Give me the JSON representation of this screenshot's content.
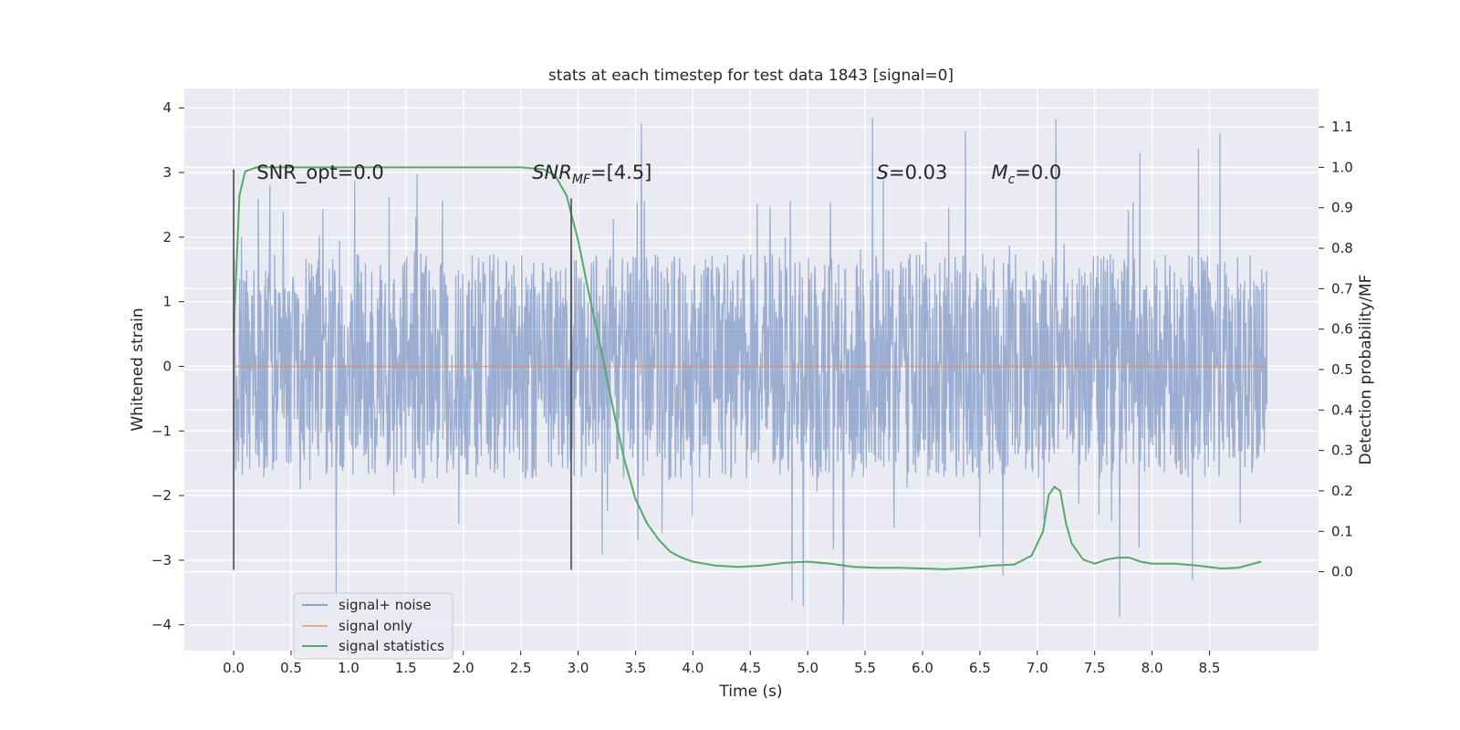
{
  "chart_data": {
    "type": "line",
    "title": "stats at each timestep for test data 1843 [signal=0]",
    "xlabel": "Time (s)",
    "ylabel": "Whitened strain",
    "ylabel_right": "Detection probability/MF",
    "xlim": [
      -0.43,
      9.45
    ],
    "ylim": [
      -4.4,
      4.3
    ],
    "ylim_right": [
      -0.195,
      1.195
    ],
    "x_ticks": [
      0.0,
      0.5,
      1.0,
      1.5,
      2.0,
      2.5,
      3.0,
      3.5,
      4.0,
      4.5,
      5.0,
      5.5,
      6.0,
      6.5,
      7.0,
      7.5,
      8.0,
      8.5
    ],
    "y_ticks": [
      -4,
      -3,
      -2,
      -1,
      0,
      1,
      2,
      3,
      4
    ],
    "y_ticks_right": [
      0.0,
      0.1,
      0.2,
      0.3,
      0.4,
      0.5,
      0.6,
      0.7,
      0.8,
      0.9,
      1.0,
      1.1
    ],
    "grid": true,
    "legend_position": "lower-left",
    "series": [
      {
        "name": "signal+ noise",
        "color": "#4c72b0",
        "axis": "left",
        "kind": "noise",
        "x_range": [
          0.0,
          9.0
        ],
        "band": 1.2,
        "spike_max": 3.9,
        "spike_min": -4.0
      },
      {
        "name": "signal only",
        "color": "#dd8452",
        "axis": "left",
        "x": [
          0.0,
          9.0
        ],
        "y": [
          0.0,
          0.0
        ]
      },
      {
        "name": "signal statistics",
        "color": "#55a868",
        "axis": "right",
        "x": [
          0.0,
          0.05,
          0.1,
          0.15,
          0.2,
          0.3,
          0.5,
          1.0,
          2.0,
          2.5,
          2.7,
          2.8,
          2.9,
          3.0,
          3.1,
          3.2,
          3.3,
          3.4,
          3.5,
          3.6,
          3.7,
          3.8,
          3.9,
          4.0,
          4.2,
          4.4,
          4.6,
          4.8,
          5.0,
          5.2,
          5.4,
          5.6,
          5.8,
          6.0,
          6.2,
          6.4,
          6.6,
          6.8,
          6.95,
          7.05,
          7.1,
          7.15,
          7.2,
          7.25,
          7.3,
          7.4,
          7.5,
          7.6,
          7.7,
          7.8,
          7.9,
          8.0,
          8.2,
          8.4,
          8.6,
          8.75,
          8.95
        ],
        "y": [
          0.59,
          0.93,
          0.99,
          0.995,
          1.0,
          1.0,
          1.0,
          1.0,
          1.0,
          1.0,
          0.995,
          0.98,
          0.93,
          0.82,
          0.68,
          0.55,
          0.41,
          0.28,
          0.18,
          0.12,
          0.08,
          0.05,
          0.035,
          0.025,
          0.015,
          0.012,
          0.015,
          0.022,
          0.025,
          0.02,
          0.012,
          0.01,
          0.01,
          0.008,
          0.006,
          0.01,
          0.015,
          0.018,
          0.04,
          0.1,
          0.19,
          0.21,
          0.2,
          0.12,
          0.07,
          0.03,
          0.02,
          0.03,
          0.035,
          0.035,
          0.025,
          0.02,
          0.02,
          0.015,
          0.008,
          0.01,
          0.025
        ]
      }
    ],
    "vlines": [
      {
        "x": 0.0,
        "y": [
          -3.15,
          3.05
        ],
        "color": "#4a4a4a"
      },
      {
        "x": 2.94,
        "y": [
          -3.15,
          2.6
        ],
        "color": "#4a4a4a"
      }
    ],
    "annotations": [
      {
        "x": 0.2,
        "y": 2.9,
        "parts": [
          {
            "t": "SNR_opt=0.0",
            "style": "normal"
          }
        ]
      },
      {
        "x": 2.6,
        "y": 2.9,
        "parts": [
          {
            "t": "SNR",
            "style": "italic"
          },
          {
            "t": "MF",
            "style": "sub-italic"
          },
          {
            "t": "=[4.5]",
            "style": "normal"
          }
        ]
      },
      {
        "x": 5.6,
        "y": 2.9,
        "parts": [
          {
            "t": "S",
            "style": "italic"
          },
          {
            "t": "=0.03",
            "style": "normal"
          }
        ]
      },
      {
        "x": 6.6,
        "y": 2.9,
        "parts": [
          {
            "t": "M",
            "style": "italic"
          },
          {
            "t": "c",
            "style": "sub-italic"
          },
          {
            "t": "=0.0",
            "style": "normal"
          }
        ]
      }
    ],
    "colors": {
      "axes_bg": "#eaeaf2",
      "grid": "#ffffff",
      "text": "#262626"
    }
  }
}
